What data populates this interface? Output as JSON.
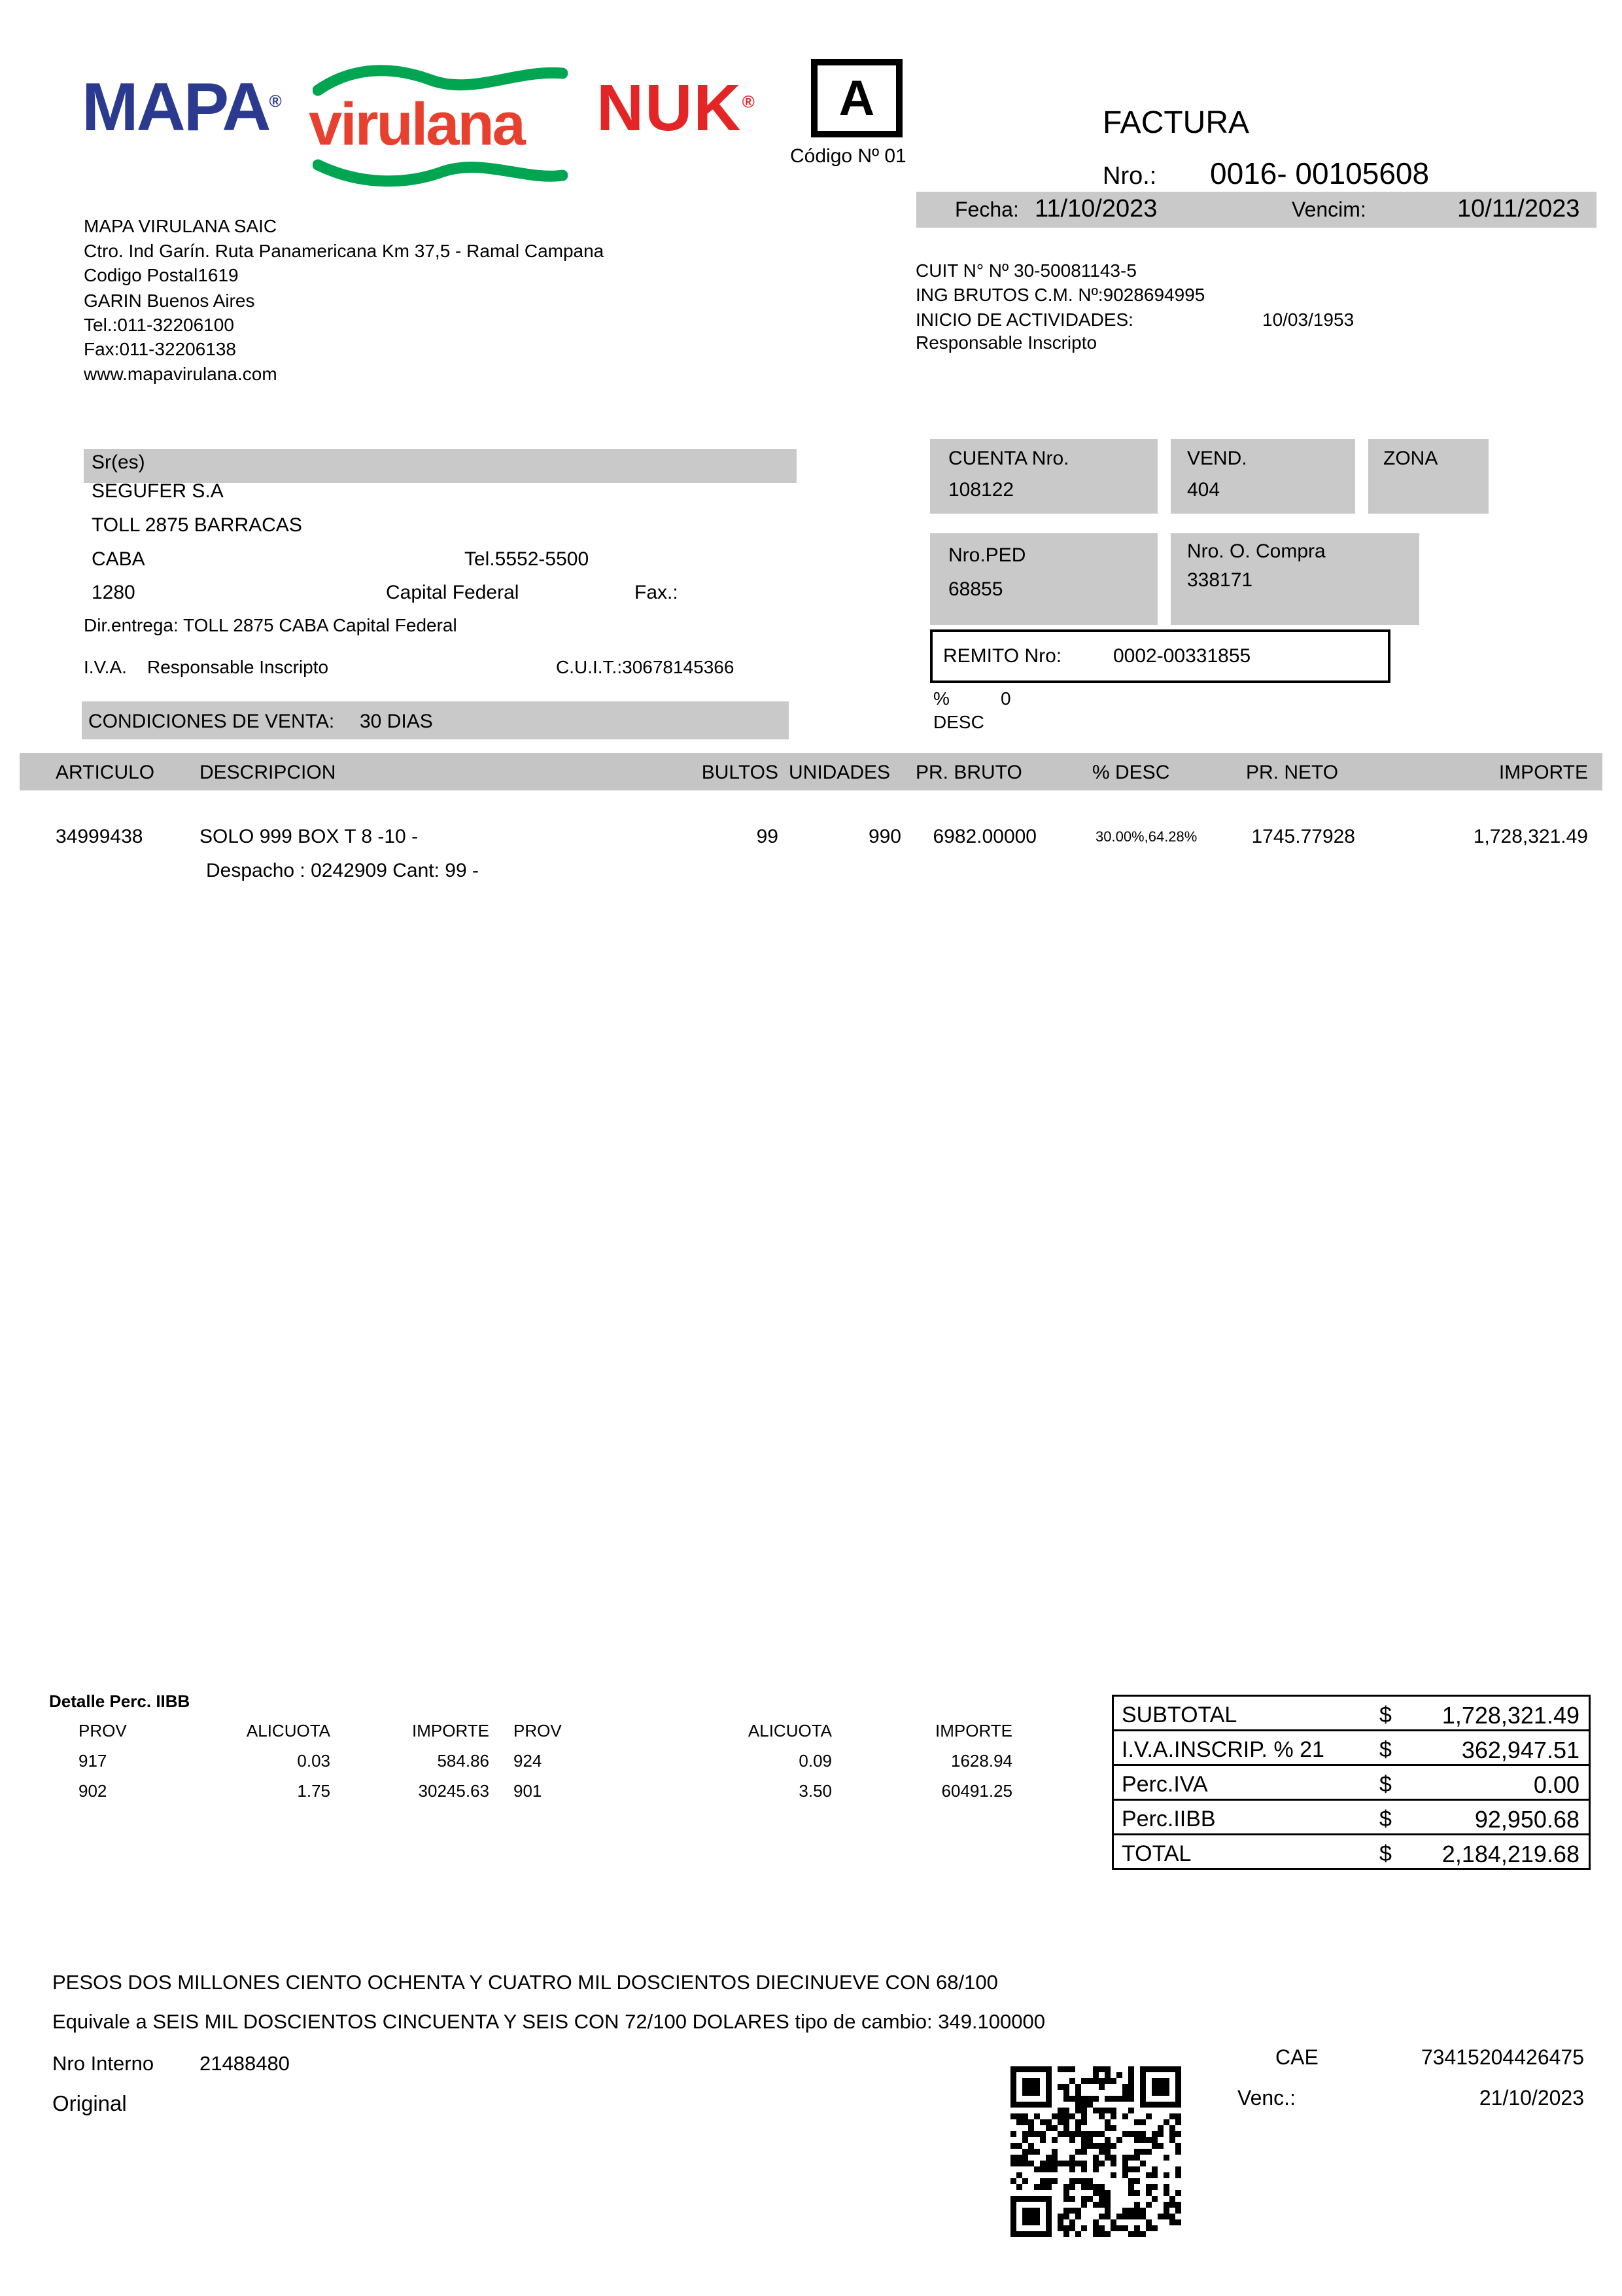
{
  "header": {
    "logo_mapa": "MAPA",
    "logo_virulana": "virulana",
    "logo_nuk": "NUK",
    "reg_mark": "®",
    "letter": "A",
    "codigo": "Código Nº 01",
    "doc_type": "FACTURA",
    "nro_label": "Nro.:",
    "nro_value": "0016- 00105608",
    "fecha_label": "Fecha:",
    "fecha_value": "11/10/2023",
    "vencim_label": "Vencim:",
    "vencim_value": "10/11/2023"
  },
  "company": {
    "name": "MAPA VIRULANA SAIC",
    "address": "Ctro. Ind Garín. Ruta Panamericana Km 37,5 - Ramal Campana",
    "postal": "Codigo Postal1619",
    "city": "GARIN Buenos Aires",
    "tel": "Tel.:011-32206100",
    "fax": "Fax:011-32206138",
    "web": "www.mapavirulana.com",
    "cuit": "CUIT N° Nº 30-50081143-5",
    "ing_brutos": "ING BRUTOS C.M. Nº:9028694995",
    "inicio_label": "INICIO DE ACTIVIDADES:",
    "inicio_value": "10/03/1953",
    "condicion_iva": "Responsable Inscripto"
  },
  "customer": {
    "sres_label": "Sr(es)",
    "name": "SEGUFER S.A",
    "address": "TOLL 2875 BARRACAS",
    "city": "CABA",
    "tel": "Tel.5552-5500",
    "cp": "1280",
    "provincia": "Capital Federal",
    "fax_label": "Fax.:",
    "dir_entrega": "Dir.entrega: TOLL 2875 CABA Capital Federal",
    "iva_label": "I.V.A.",
    "iva_value": "Responsable Inscripto",
    "cuit": "C.U.I.T.:30678145366",
    "cond_venta_label": "CONDICIONES DE VENTA:",
    "cond_venta_value": "30 DIAS"
  },
  "sale_info": {
    "cuenta_label": "CUENTA Nro.",
    "cuenta_value": "108122",
    "vend_label": "VEND.",
    "vend_value": "404",
    "zona_label": "ZONA",
    "ped_label": "Nro.PED",
    "ped_value": "68855",
    "oc_label": "Nro. O. Compra",
    "oc_value": "338171",
    "remito_label": "REMITO Nro:",
    "remito_value": "0002-00331855",
    "desc_pct_label": "%",
    "desc_pct_value": "0",
    "desc_label": "DESC"
  },
  "items_table": {
    "headers": {
      "articulo": "ARTICULO",
      "descripcion": "DESCRIPCION",
      "bultos": "BULTOS",
      "unidades": "UNIDADES",
      "pr_bruto": "PR. BRUTO",
      "desc": "% DESC",
      "pr_neto": "PR. NETO",
      "importe": "IMPORTE"
    },
    "rows": [
      {
        "articulo": "34999438",
        "descripcion": "SOLO 999 BOX T 8 -10 -",
        "bultos": "99",
        "unidades": "990",
        "pr_bruto": "6982.00000",
        "desc": "30.00%,64.28%",
        "pr_neto": "1745.77928",
        "importe": "1,728,321.49",
        "detalle": "Despacho : 0242909 Cant: 99 -"
      }
    ]
  },
  "perc_iibb": {
    "title": "Detalle Perc. IIBB",
    "h": [
      "PROV",
      "ALICUOTA",
      "IMPORTE",
      "PROV",
      "ALICUOTA",
      "IMPORTE"
    ],
    "rows": [
      [
        "917",
        "0.03",
        "584.86",
        "924",
        "0.09",
        "1628.94"
      ],
      [
        "902",
        "1.75",
        "30245.63",
        "901",
        "3.50",
        "60491.25"
      ]
    ]
  },
  "totals": {
    "rows": [
      {
        "label": "SUBTOTAL",
        "currency": "$",
        "value": "1,728,321.49"
      },
      {
        "label": "I.V.A.INSCRIP.  % 21",
        "currency": "$",
        "value": "362,947.51"
      },
      {
        "label": "Perc.IVA",
        "currency": "$",
        "value": "0.00"
      },
      {
        "label": "Perc.IIBB",
        "currency": "$",
        "value": "92,950.68"
      },
      {
        "label": "TOTAL",
        "currency": "$",
        "value": "2,184,219.68"
      }
    ]
  },
  "footer": {
    "amount_words": "PESOS DOS MILLONES CIENTO OCHENTA Y CUATRO MIL DOSCIENTOS DIECINUEVE CON 68/100",
    "usd_line": "Equivale a SEIS MIL DOSCIENTOS CINCUENTA Y SEIS CON 72/100 DOLARES tipo de cambio: 349.100000",
    "nro_interno_label": "Nro Interno",
    "nro_interno_value": "21488480",
    "copy_label": "Original",
    "cae_label": "CAE",
    "cae_value": "73415204426475",
    "cae_venc_label": "Venc.:",
    "cae_venc_value": "21/10/2023"
  }
}
